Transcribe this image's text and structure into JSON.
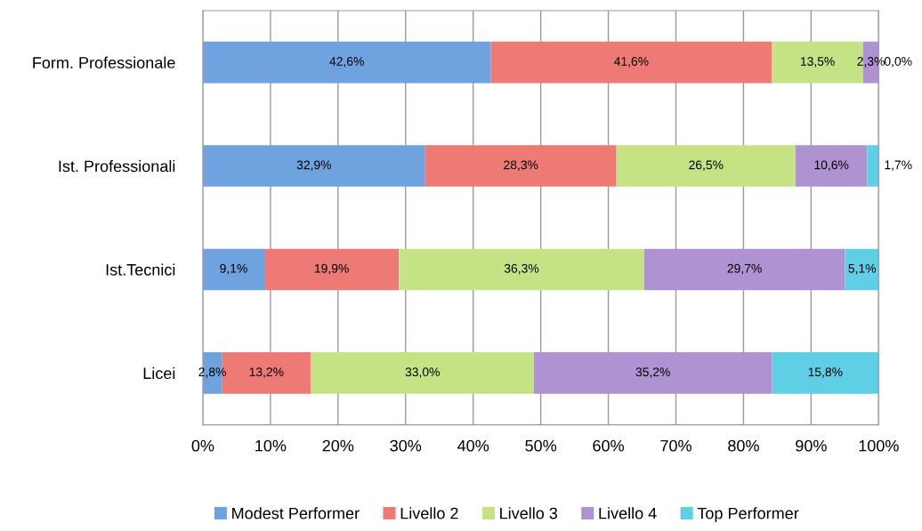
{
  "chart_data": {
    "type": "bar",
    "orientation": "horizontal",
    "stacked": true,
    "categories": [
      "Form. Professionale",
      "Ist. Professionali",
      "Ist.Tecnici",
      "Licei"
    ],
    "series": [
      {
        "name": "Modest Performer",
        "color": "#6fa3e0",
        "values": [
          42.6,
          32.9,
          9.1,
          2.8
        ],
        "value_labels": [
          "42,6%",
          "32,9%",
          "9,1%",
          "2,8%"
        ]
      },
      {
        "name": "Livello 2",
        "color": "#ee7a76",
        "values": [
          41.6,
          28.3,
          19.9,
          13.2
        ],
        "value_labels": [
          "41,6%",
          "28,3%",
          "19,9%",
          "13,2%"
        ]
      },
      {
        "name": "Livello 3",
        "color": "#c5e384",
        "values": [
          13.5,
          26.5,
          36.3,
          33.0
        ],
        "value_labels": [
          "13,5%",
          "26,5%",
          "36,3%",
          "33,0%"
        ]
      },
      {
        "name": "Livello 4",
        "color": "#ae92d2",
        "values": [
          2.3,
          10.6,
          29.7,
          35.2
        ],
        "value_labels": [
          "2,3%",
          "10,6%",
          "29,7%",
          "35,2%"
        ]
      },
      {
        "name": "Top Performer",
        "color": "#5fcfe6",
        "values": [
          0.0,
          1.7,
          5.1,
          15.8
        ],
        "value_labels": [
          "0,0%",
          "1,7%",
          "5,1%",
          "15,8%"
        ]
      }
    ],
    "xlim": [
      0,
      100
    ],
    "xticks": [
      {
        "value": 0,
        "label": "0%"
      },
      {
        "value": 10,
        "label": "10%"
      },
      {
        "value": 20,
        "label": "20%"
      },
      {
        "value": 30,
        "label": "30%"
      },
      {
        "value": 40,
        "label": "40%"
      },
      {
        "value": 50,
        "label": "50%"
      },
      {
        "value": 60,
        "label": "60%"
      },
      {
        "value": 70,
        "label": "70%"
      },
      {
        "value": 80,
        "label": "80%"
      },
      {
        "value": 90,
        "label": "90%"
      },
      {
        "value": 100,
        "label": "100%"
      }
    ],
    "grid": "x",
    "legend": "bottom"
  }
}
